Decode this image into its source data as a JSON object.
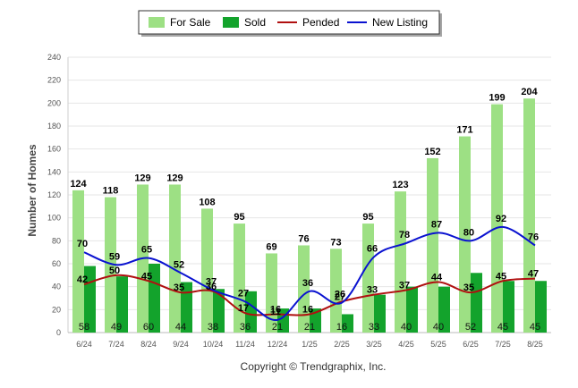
{
  "chart_data": {
    "type": "bar",
    "title": "",
    "ylabel": "Number of Homes",
    "xlabel": "",
    "ylim": [
      0,
      240
    ],
    "yticks": [
      0,
      20,
      40,
      60,
      80,
      100,
      120,
      140,
      160,
      180,
      200,
      220,
      240
    ],
    "grid": true,
    "legend_position": "top-center",
    "categories": [
      "6/24",
      "7/24",
      "8/24",
      "9/24",
      "10/24",
      "11/24",
      "12/24",
      "1/25",
      "2/25",
      "3/25",
      "4/25",
      "5/25",
      "6/25",
      "7/25",
      "8/25"
    ],
    "series": [
      {
        "name": "For Sale",
        "kind": "bar",
        "color": "#9de084",
        "values": [
          124,
          118,
          129,
          129,
          108,
          95,
          69,
          76,
          73,
          95,
          123,
          152,
          171,
          199,
          204
        ]
      },
      {
        "name": "Sold",
        "kind": "bar",
        "color": "#13a32c",
        "values": [
          58,
          49,
          60,
          44,
          38,
          36,
          21,
          21,
          16,
          33,
          40,
          40,
          52,
          45,
          45
        ]
      },
      {
        "name": "Pended",
        "kind": "line",
        "color": "#b01010",
        "values": [
          42,
          50,
          45,
          35,
          36,
          17,
          16,
          16,
          27,
          33,
          37,
          44,
          35,
          45,
          47
        ]
      },
      {
        "name": "New Listing",
        "kind": "line",
        "color": "#0a12d0",
        "values": [
          70,
          59,
          65,
          52,
          37,
          27,
          11,
          36,
          26,
          66,
          78,
          87,
          80,
          92,
          76
        ]
      }
    ]
  },
  "copyright": "Copyright © Trendgraphix, Inc."
}
